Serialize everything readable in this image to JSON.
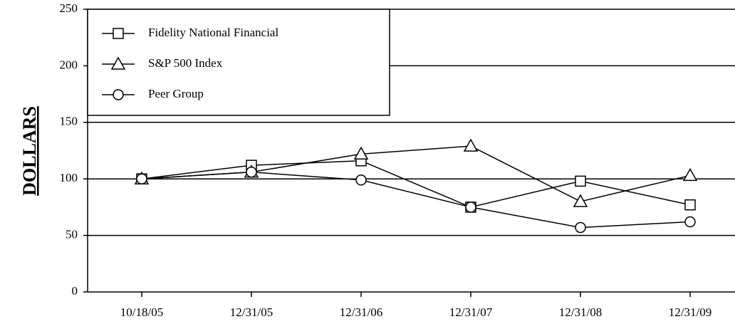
{
  "chart_data": {
    "type": "line",
    "ylabel": "DOLLARS",
    "categories": [
      "10/18/05",
      "12/31/05",
      "12/31/06",
      "12/31/07",
      "12/31/08",
      "12/31/09"
    ],
    "series": [
      {
        "name": "Fidelity National Financial",
        "color": "#000000",
        "marker": "square",
        "values": [
          100,
          112,
          116,
          75,
          98,
          77
        ]
      },
      {
        "name": "S&P 500 Index",
        "color": "#000000",
        "marker": "triangle",
        "values": [
          100,
          106,
          122,
          129,
          80,
          103
        ]
      },
      {
        "name": "Peer Group",
        "color": "#000000",
        "marker": "circle",
        "values": [
          100,
          106,
          99,
          75,
          57,
          62
        ]
      }
    ],
    "ylim": [
      0,
      250
    ],
    "yticks": [
      0,
      50,
      100,
      150,
      200,
      250
    ],
    "grid": true,
    "legend": "upper left"
  }
}
